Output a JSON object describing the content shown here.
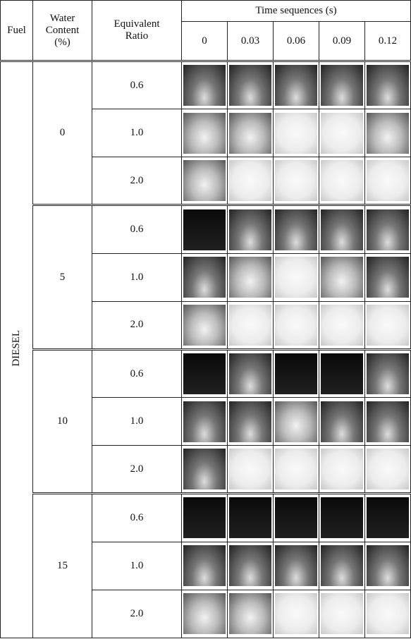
{
  "table": {
    "header": {
      "fuel": "Fuel",
      "water_content": "Water Content (%)",
      "equivalent_ratio": "Equivalent Ratio",
      "time_sequences": "Time sequences (s)",
      "times": [
        "0",
        "0.03",
        "0.06",
        "0.09",
        "0.12"
      ]
    },
    "fuel": "DIESEL",
    "groups": [
      {
        "water_content": "0",
        "ratios": [
          "0.6",
          "1.0",
          "2.0"
        ]
      },
      {
        "water_content": "5",
        "ratios": [
          "0.6",
          "1.0",
          "2.0"
        ]
      },
      {
        "water_content": "10",
        "ratios": [
          "0.6",
          "1.0",
          "2.0"
        ]
      },
      {
        "water_content": "15",
        "ratios": [
          "0.6",
          "1.0",
          "2.0"
        ]
      }
    ]
  }
}
